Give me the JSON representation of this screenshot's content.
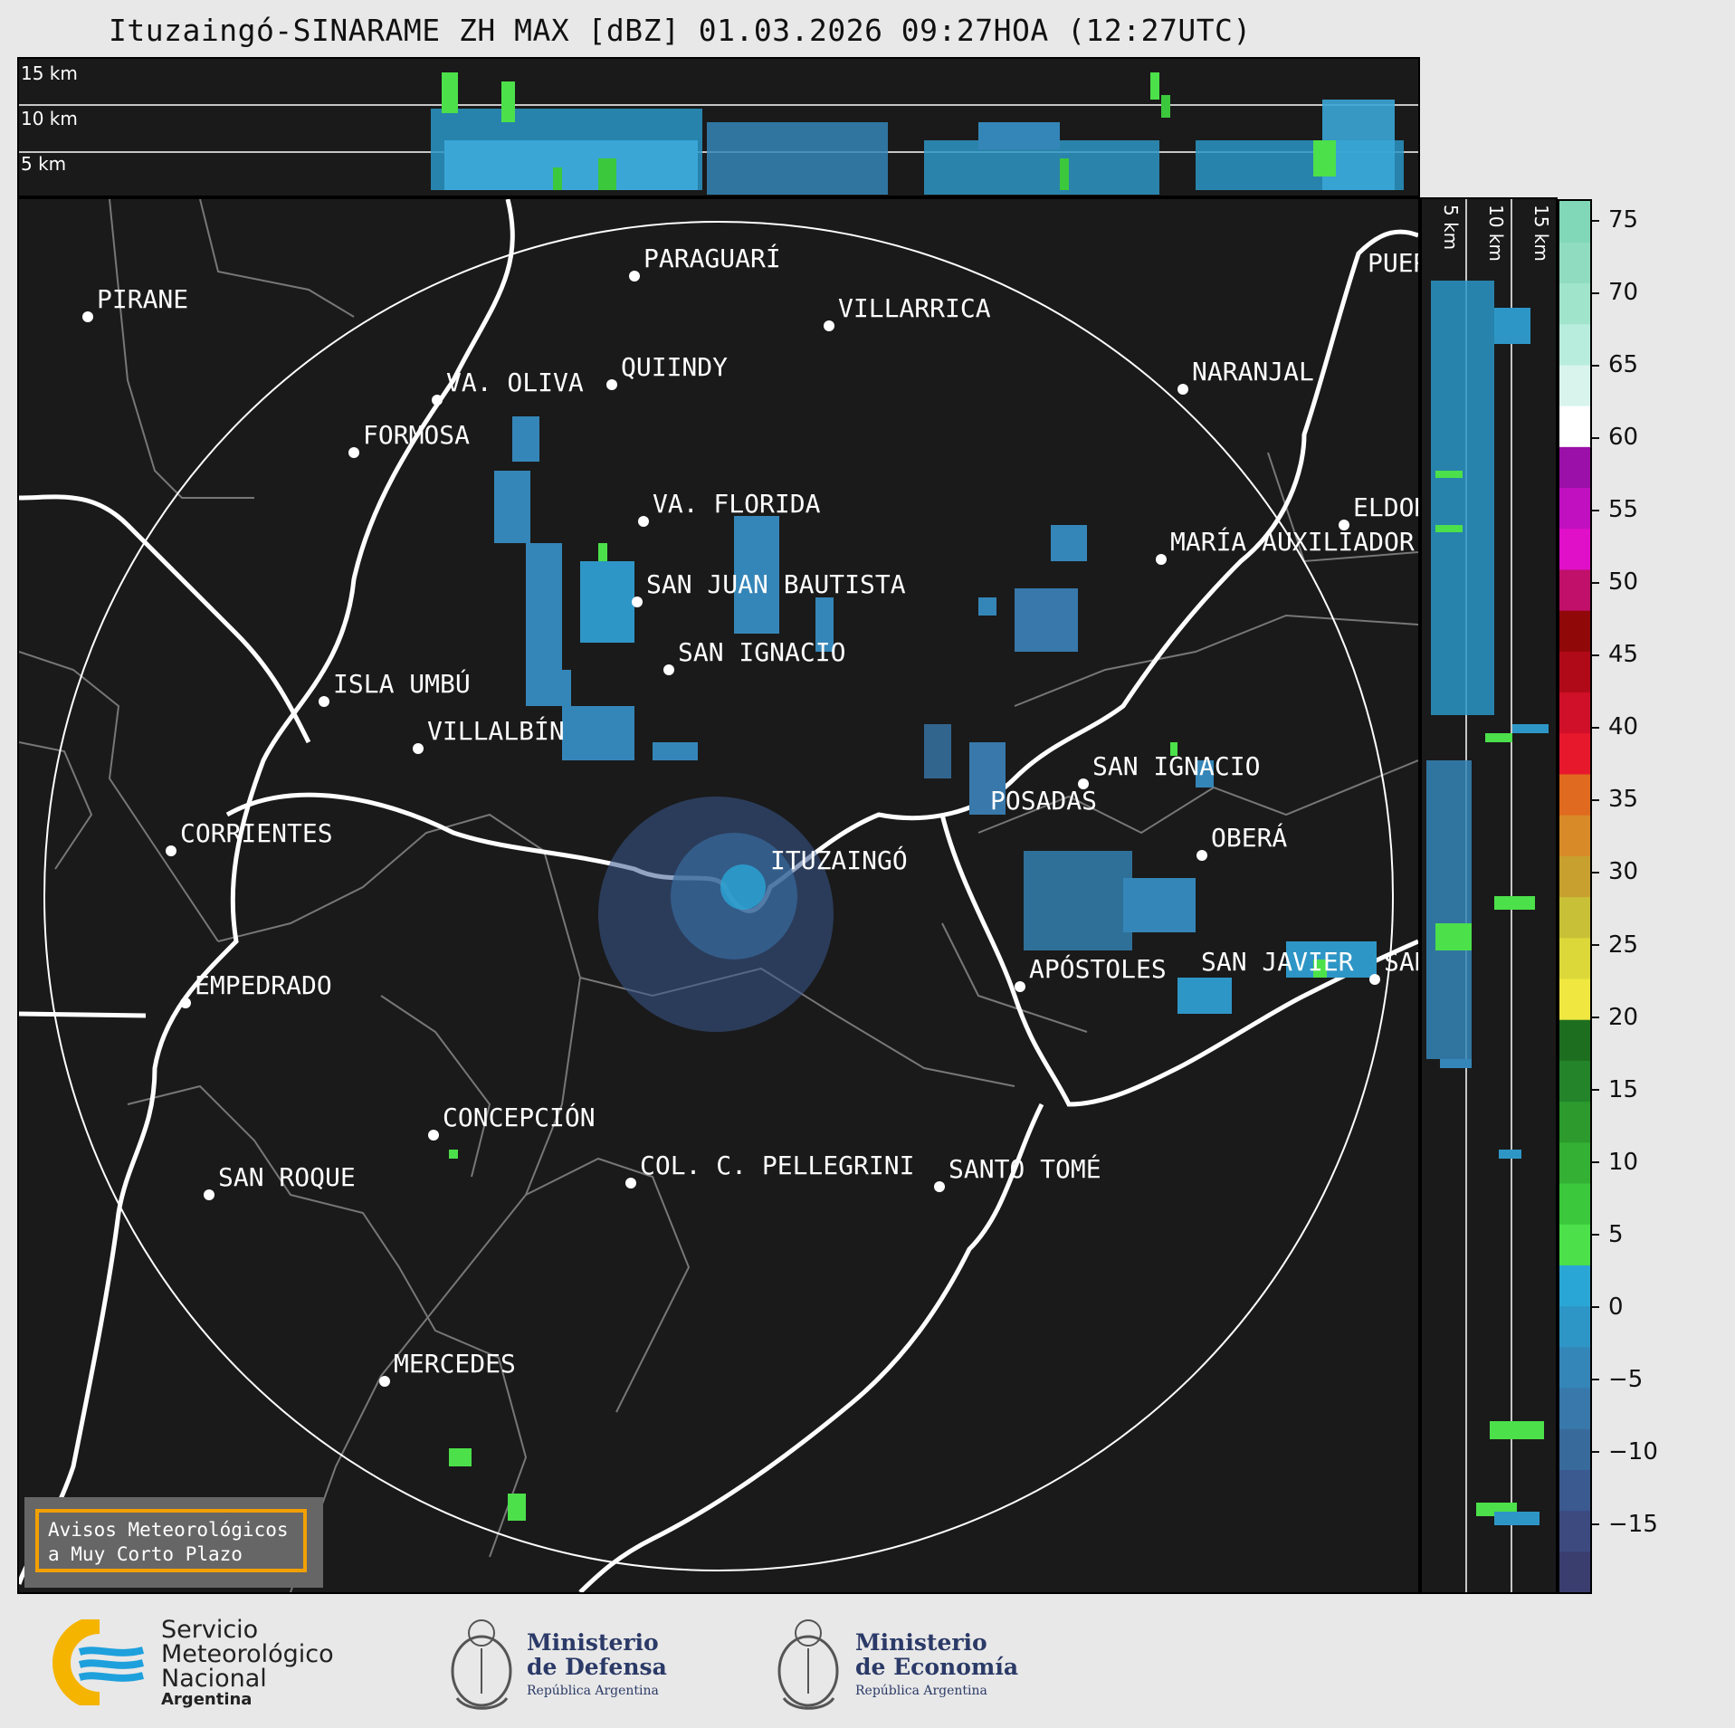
{
  "title": "Ituzaingó-SINARAME ZH MAX [dBZ] 01.03.2026 09:27HOA (12:27UTC)",
  "top_profile": {
    "heights": [
      "15 km",
      "10 km",
      "5 km"
    ]
  },
  "side_profile": {
    "heights": [
      "5 km",
      "10 km",
      "15 km"
    ]
  },
  "cities": [
    {
      "name": "PIRANE"
    },
    {
      "name": "PARAGUARÍ"
    },
    {
      "name": "VILLARRICA"
    },
    {
      "name": "QUIINDY"
    },
    {
      "name": "VA. OLIVA"
    },
    {
      "name": "FORMOSA"
    },
    {
      "name": "NARANJAL"
    },
    {
      "name": "PUER"
    },
    {
      "name": "ELDOR"
    },
    {
      "name": "VA. FLORIDA"
    },
    {
      "name": "MARÍA AUXILIADOR"
    },
    {
      "name": "SAN JUAN BAUTISTA"
    },
    {
      "name": "SAN IGNACIO"
    },
    {
      "name": "ISLA UMBÚ"
    },
    {
      "name": "VILLALBÍN"
    },
    {
      "name": "SAN IGNACIO"
    },
    {
      "name": "POSADAS"
    },
    {
      "name": "CORRIENTES"
    },
    {
      "name": "ITUZAINGÓ"
    },
    {
      "name": "OBERÁ"
    },
    {
      "name": "APÓSTOLES"
    },
    {
      "name": "SAN JAVIER"
    },
    {
      "name": "SAN"
    },
    {
      "name": "EMPEDRADO"
    },
    {
      "name": "CONCEPCIÓN"
    },
    {
      "name": "COL. C. PELLEGRINI"
    },
    {
      "name": "SANTO TOMÉ"
    },
    {
      "name": "SAN ROQUE"
    },
    {
      "name": "MERCEDES"
    }
  ],
  "colorbar": {
    "ticks": [
      "75",
      "70",
      "65",
      "60",
      "55",
      "50",
      "45",
      "40",
      "35",
      "30",
      "25",
      "20",
      "15",
      "10",
      "5",
      "0",
      "−5",
      "−10",
      "−15"
    ],
    "colors": [
      "#3a3e6e",
      "#3c4a80",
      "#3a5a90",
      "#386a9c",
      "#3878aa",
      "#3586b8",
      "#2e96c6",
      "#2aa6d6",
      "#4ce04a",
      "#3cc83c",
      "#34b034",
      "#2c9a2c",
      "#24842a",
      "#1e6e20",
      "#f0e840",
      "#dcd83a",
      "#c8c036",
      "#c8a030",
      "#d88a28",
      "#e06a20",
      "#e8182c",
      "#d01028",
      "#b00a18",
      "#900808",
      "#c0106a",
      "#e010c8",
      "#c010c0",
      "#9a10a8",
      "#ffffff",
      "#d8f4ec",
      "#b8ecdc",
      "#a0e4cc",
      "#90dcc0",
      "#80d8b8"
    ],
    "min": -19.5,
    "max": 76.5
  },
  "warning": {
    "line1": "Avisos Meteorológicos",
    "line2": "a Muy Corto Plazo"
  },
  "logos": {
    "smn": {
      "line1": "Servicio",
      "line2": "Meteorológico",
      "line3": "Nacional",
      "line4": "Argentina"
    },
    "defensa": {
      "line1": "Ministerio",
      "line2": "de Defensa",
      "line3": "República Argentina"
    },
    "economia": {
      "line1": "Ministerio",
      "line2": "de Economía",
      "line3": "República Argentina"
    }
  }
}
